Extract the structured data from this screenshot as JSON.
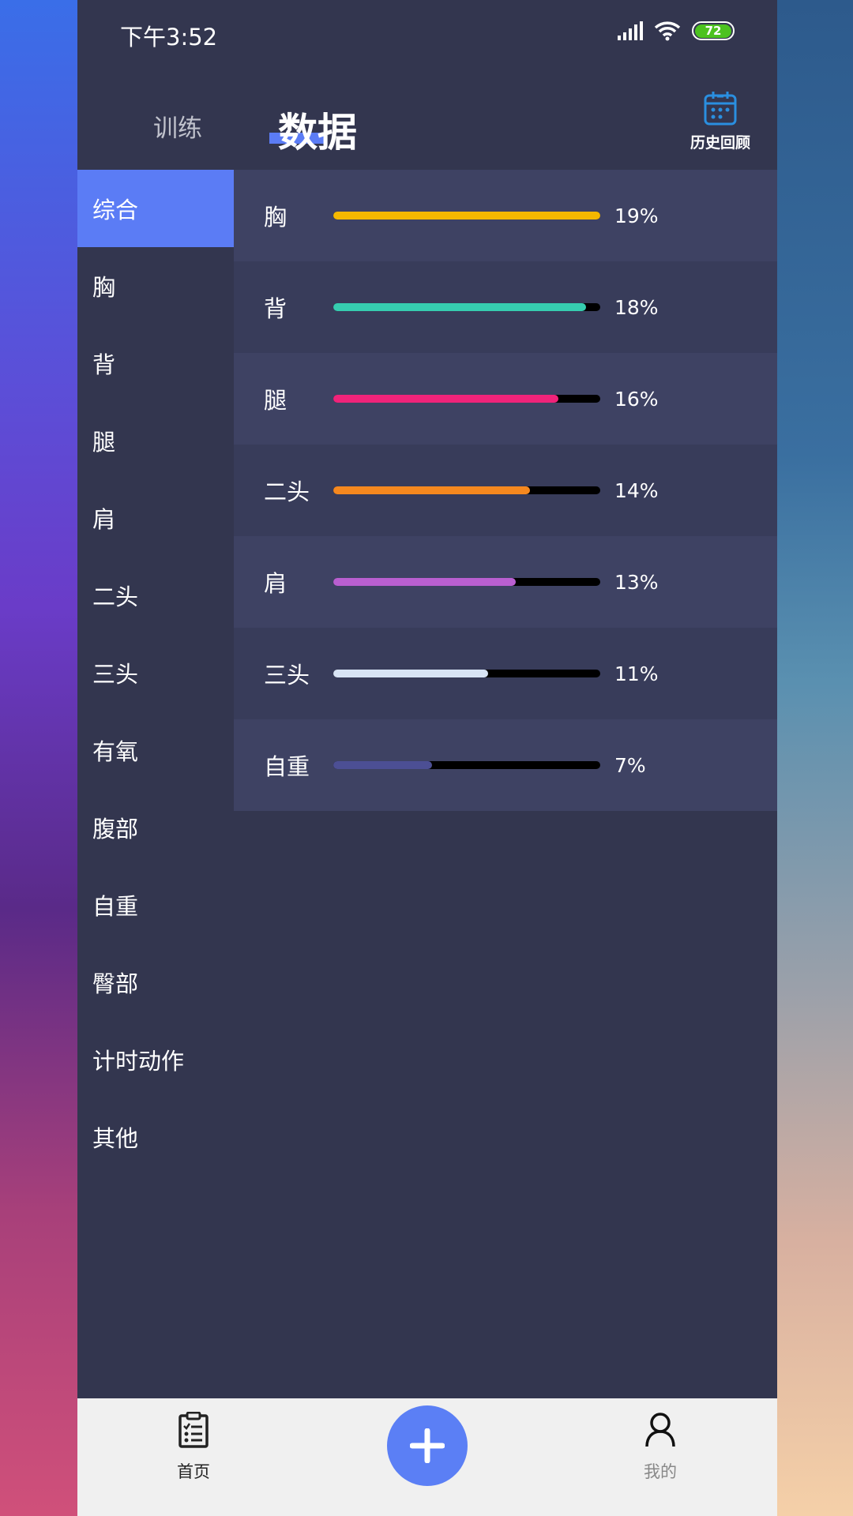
{
  "status_bar": {
    "time": "下午3:52",
    "battery": "72"
  },
  "header": {
    "tab_train": "训练",
    "tab_data": "数据",
    "history_label": "历史回顾"
  },
  "sidebar": {
    "items": [
      "综合",
      "胸",
      "背",
      "腿",
      "肩",
      "二头",
      "三头",
      "有氧",
      "腹部",
      "自重",
      "臀部",
      "计时动作",
      "其他"
    ],
    "active": "综合"
  },
  "stats": [
    {
      "label": "胸",
      "percent": "19%",
      "value": 19,
      "color": "#f5b800"
    },
    {
      "label": "背",
      "percent": "18%",
      "value": 18,
      "color": "#36cdb0"
    },
    {
      "label": "腿",
      "percent": "16%",
      "value": 16,
      "color": "#f0237a"
    },
    {
      "label": "二头",
      "percent": "14%",
      "value": 14,
      "color": "#f5881f"
    },
    {
      "label": "肩",
      "percent": "13%",
      "value": 13,
      "color": "#b95fd0"
    },
    {
      "label": "三头",
      "percent": "11%",
      "value": 11,
      "color": "#d8e4f5"
    },
    {
      "label": "自重",
      "percent": "7%",
      "value": 7,
      "color": "#4c4f94"
    }
  ],
  "bottom_nav": {
    "home": "首页",
    "me": "我的"
  },
  "colors": {
    "accent": "#5b7cf5",
    "background": "#33364f"
  }
}
